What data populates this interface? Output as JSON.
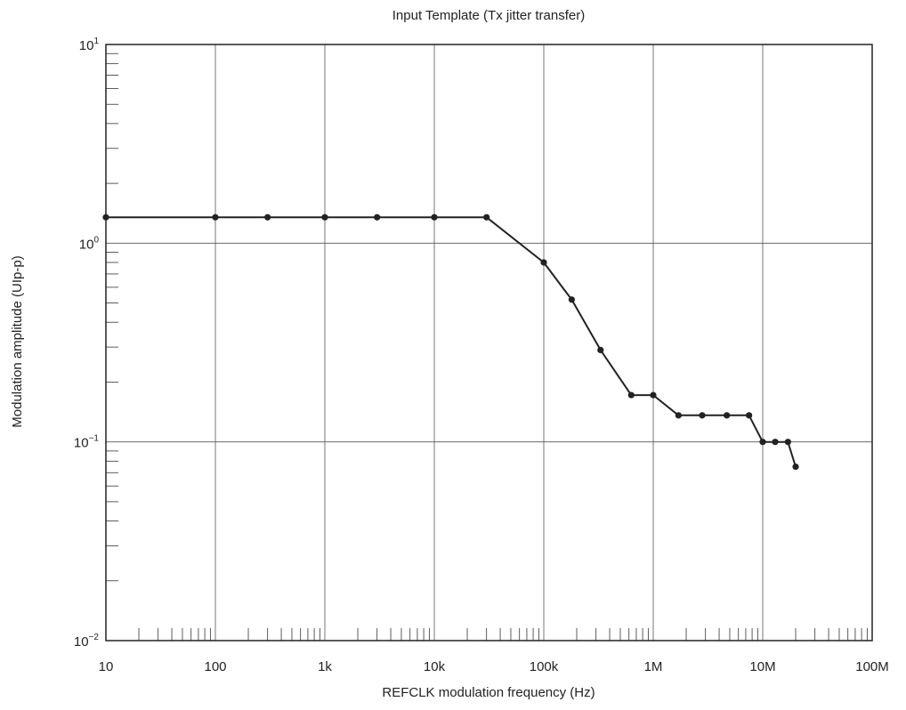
{
  "chart_data": {
    "type": "line",
    "title": "Input Template (Tx jitter transfer)",
    "xlabel": "REFCLK modulation frequency (Hz)",
    "ylabel": "Modulation amplitude (UIp-p)",
    "x_scale": "log",
    "y_scale": "log",
    "xlim": [
      10,
      100000000
    ],
    "ylim": [
      0.01,
      10
    ],
    "grid": true,
    "x_ticks": [
      {
        "value": 10,
        "label": "10"
      },
      {
        "value": 100,
        "label": "100"
      },
      {
        "value": 1000,
        "label": "1k"
      },
      {
        "value": 10000,
        "label": "10k"
      },
      {
        "value": 100000,
        "label": "100k"
      },
      {
        "value": 1000000,
        "label": "1M"
      },
      {
        "value": 10000000,
        "label": "10M"
      },
      {
        "value": 100000000,
        "label": "100M"
      }
    ],
    "y_ticks": [
      {
        "value": 0.01,
        "base": "10",
        "exp": "−2"
      },
      {
        "value": 0.1,
        "base": "10",
        "exp": "−1"
      },
      {
        "value": 1,
        "base": "10",
        "exp": "0"
      },
      {
        "value": 10,
        "base": "10",
        "exp": "1"
      }
    ],
    "series": [
      {
        "color": "#222222",
        "points": [
          [
            10,
            1.35
          ],
          [
            100,
            1.35
          ],
          [
            300,
            1.35
          ],
          [
            1000,
            1.35
          ],
          [
            3000,
            1.35
          ],
          [
            10000,
            1.35
          ],
          [
            30000,
            1.35
          ],
          [
            100000,
            0.8
          ],
          [
            180000,
            0.52
          ],
          [
            330000,
            0.29
          ],
          [
            630000,
            0.172
          ],
          [
            1000000,
            0.172
          ],
          [
            1700000,
            0.136
          ],
          [
            2800000,
            0.136
          ],
          [
            4700000,
            0.136
          ],
          [
            7500000,
            0.136
          ],
          [
            10000000,
            0.1
          ],
          [
            13000000,
            0.1
          ],
          [
            17000000,
            0.1
          ],
          [
            20000000,
            0.075
          ]
        ]
      }
    ]
  }
}
